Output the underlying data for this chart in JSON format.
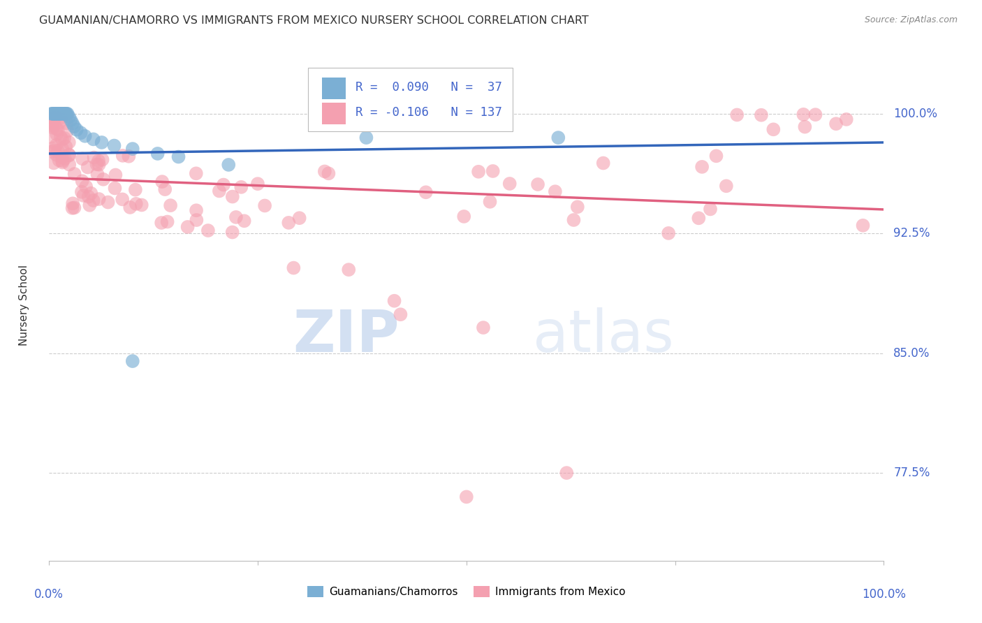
{
  "title": "GUAMANIAN/CHAMORRO VS IMMIGRANTS FROM MEXICO NURSERY SCHOOL CORRELATION CHART",
  "source": "Source: ZipAtlas.com",
  "ylabel": "Nursery School",
  "ytick_labels": [
    "77.5%",
    "85.0%",
    "92.5%",
    "100.0%"
  ],
  "ytick_values": [
    0.775,
    0.85,
    0.925,
    1.0
  ],
  "xrange": [
    0.0,
    1.0
  ],
  "yrange": [
    0.72,
    1.04
  ],
  "legend_blue_label": "Guamanians/Chamorros",
  "legend_pink_label": "Immigrants from Mexico",
  "R_blue": 0.09,
  "N_blue": 37,
  "R_pink": -0.106,
  "N_pink": 137,
  "blue_color": "#7BAFD4",
  "pink_color": "#F4A0B0",
  "blue_line_color": "#3366BB",
  "pink_line_color": "#E06080",
  "watermark_zip": "ZIP",
  "watermark_atlas": "atlas",
  "background_color": "#FFFFFF",
  "grid_color": "#CCCCCC",
  "axis_label_color": "#4466CC",
  "title_color": "#333333",
  "source_color": "#888888"
}
